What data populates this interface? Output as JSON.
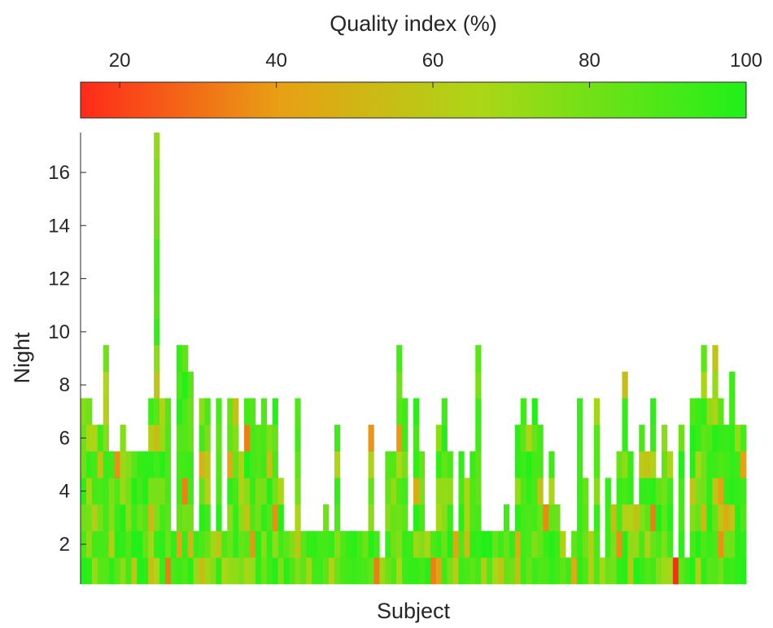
{
  "chart_data": {
    "type": "heatmap",
    "title": "",
    "xlabel": "Subject",
    "ylabel": "Night",
    "colorbar": {
      "label": "Quality index (%)",
      "range": [
        15,
        100
      ],
      "ticks": [
        20,
        40,
        60,
        80,
        100
      ],
      "tick_labels": [
        "20",
        "40",
        "60",
        "80",
        "100"
      ],
      "colors": [
        "#ff2a1a",
        "#e8a014",
        "#acd616",
        "#20f018"
      ],
      "placement": "top"
    },
    "y_ticks": [
      2,
      4,
      6,
      8,
      10,
      12,
      14,
      16
    ],
    "y_tick_labels": [
      "2",
      "4",
      "6",
      "8",
      "10",
      "12",
      "14",
      "16"
    ],
    "ylim": [
      0.5,
      17.5
    ],
    "n_subjects": 118,
    "nights_per_subject": [
      7,
      7,
      6,
      6,
      9,
      5,
      5,
      6,
      5,
      5,
      5,
      5,
      7,
      17,
      7,
      7,
      2,
      9,
      9,
      8,
      2,
      7,
      7,
      2,
      7,
      2,
      7,
      7,
      5,
      7,
      7,
      6,
      7,
      6,
      7,
      4,
      2,
      2,
      7,
      2,
      2,
      2,
      2,
      3,
      2,
      6,
      2,
      2,
      2,
      2,
      2,
      6,
      2,
      1,
      5,
      5,
      9,
      7,
      2,
      7,
      5,
      2,
      2,
      6,
      7,
      5,
      2,
      5,
      4,
      5,
      9,
      2,
      2,
      2,
      2,
      3,
      2,
      6,
      7,
      6,
      7,
      6,
      3,
      5,
      3,
      2,
      1,
      2,
      7,
      4,
      2,
      7,
      1,
      4,
      3,
      5,
      8,
      5,
      3,
      6,
      5,
      7,
      4,
      6,
      5,
      1,
      6,
      1,
      7,
      7,
      9,
      7,
      9,
      7,
      6,
      8,
      6,
      6
    ],
    "summary": "Per-subject nightly quality index (%); most cells 75–100%, occasional 30–65% nights, one ~15% cell near the right end."
  }
}
